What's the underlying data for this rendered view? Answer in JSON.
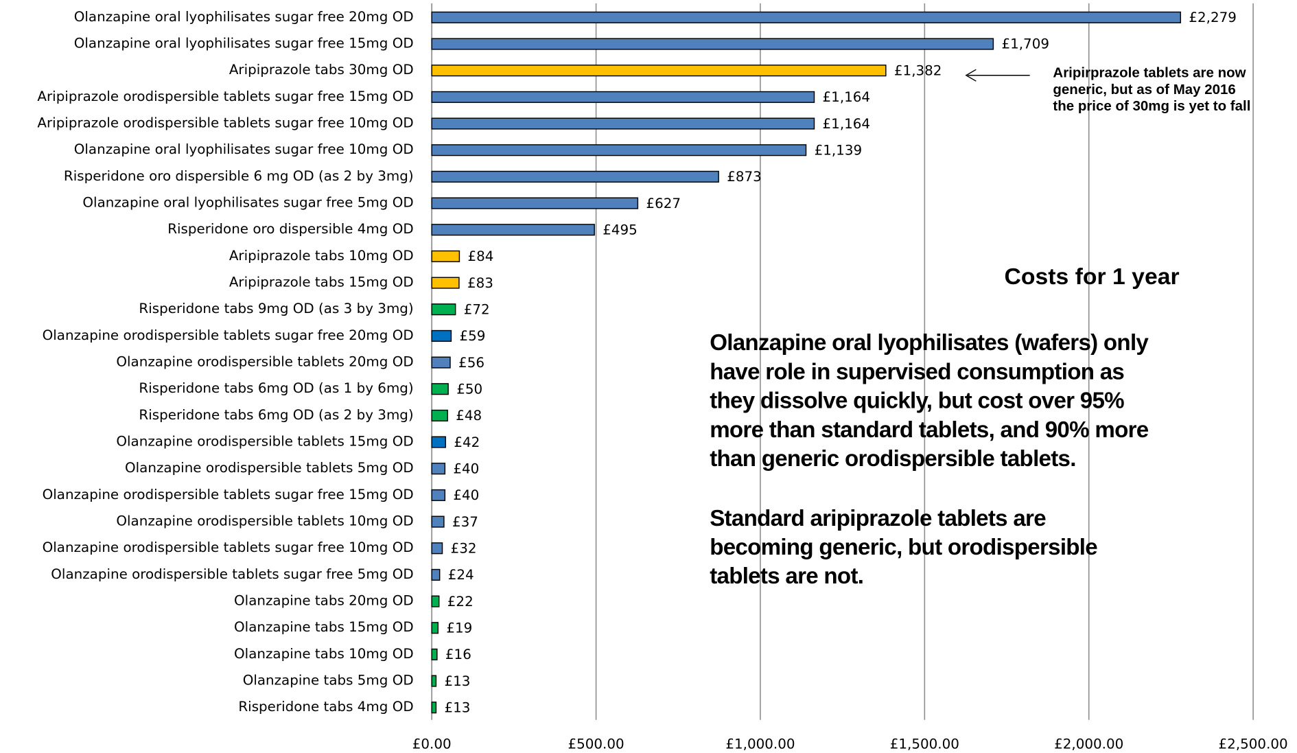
{
  "chart_data": {
    "type": "bar",
    "orientation": "horizontal",
    "categories": [
      "Olanzapine oral lyophilisates sugar free 20mg OD",
      "Olanzapine oral lyophilisates sugar free 15mg OD",
      "Aripiprazole tabs 30mg OD",
      "Aripiprazole orodispersible tablets sugar free 15mg OD",
      "Aripiprazole orodispersible tablets sugar free 10mg OD",
      "Olanzapine oral lyophilisates sugar free 10mg OD",
      "Risperidone oro dispersible 6 mg OD (as 2 by 3mg)",
      "Olanzapine oral lyophilisates sugar free 5mg OD",
      "Risperidone oro dispersible 4mg OD",
      "Aripiprazole tabs 10mg OD",
      "Aripiprazole tabs 15mg OD",
      "Risperidone tabs 9mg OD (as 3 by 3mg)",
      "Olanzapine orodispersible tablets sugar free 20mg OD",
      "Olanzapine  orodispersible tablets 20mg OD",
      "Risperidone tabs 6mg OD (as 1 by 6mg)",
      "Risperidone tabs 6mg OD (as 2 by 3mg)",
      "Olanzapine  orodispersible tablets 15mg OD",
      "Olanzapine orodispersible tablets 5mg OD",
      "Olanzapine  orodispersible tablets sugar free 15mg OD",
      "Olanzapine orodispersible tablets 10mg OD",
      "Olanzapine orodispersible tablets sugar free 10mg OD",
      "Olanzapine orodispersible tablets sugar free 5mg OD",
      "Olanzapine tabs 20mg OD",
      "Olanzapine tabs 15mg OD",
      "Olanzapine tabs 10mg OD",
      "Olanzapine tabs 5mg OD",
      "Risperidone tabs 4mg OD"
    ],
    "values": [
      2279,
      1709,
      1382,
      1164,
      1164,
      1139,
      873,
      627,
      495,
      84,
      83,
      72,
      59,
      56,
      50,
      48,
      42,
      40,
      40,
      37,
      32,
      24,
      22,
      19,
      16,
      13,
      13
    ],
    "value_labels": [
      "£2,279",
      "£1,709",
      "£1,382",
      "£1,164",
      "£1,164",
      "£1,139",
      "£873",
      "£627",
      "£495",
      "£84",
      "£83",
      "£72",
      "£59",
      "£56",
      "£50",
      "£48",
      "£42",
      "£40",
      "£40",
      "£37",
      "£32",
      "£24",
      "£22",
      "£19",
      "£16",
      "£13",
      "£13"
    ],
    "colors": [
      "#4f81bd",
      "#4f81bd",
      "#ffc000",
      "#4f81bd",
      "#4f81bd",
      "#4f81bd",
      "#4f81bd",
      "#4f81bd",
      "#4f81bd",
      "#ffc000",
      "#ffc000",
      "#00b050",
      "#0070c0",
      "#4f81bd",
      "#00b050",
      "#00b050",
      "#0070c0",
      "#4f81bd",
      "#4f81bd",
      "#4f81bd",
      "#4f81bd",
      "#4f81bd",
      "#00b050",
      "#00b050",
      "#00b050",
      "#00b050",
      "#00b050"
    ],
    "xlim": [
      0,
      2500
    ],
    "xticks": [
      {
        "value": 0,
        "label": "£0.00"
      },
      {
        "value": 500,
        "label": "£500.00"
      },
      {
        "value": 1000,
        "label": "£1,000.00"
      },
      {
        "value": 1500,
        "label": "£1,500.00"
      },
      {
        "value": 2000,
        "label": "£2,000.00"
      },
      {
        "value": 2500,
        "label": "£2,500.00"
      }
    ],
    "grid": true,
    "arrow_note": [
      "Aripirprazole tablets are now",
      "generic, but as of May 2016",
      "the price of 30mg is yet to fall"
    ],
    "heading": "Costs for 1 year",
    "notes": [
      [
        "Olanzapine oral lyophilisates (wafers) only",
        "have role in supervised consumption as",
        "they dissolve quickly, but cost over 95%",
        "more than standard tablets, and 90% more",
        "than generic orodispersible tablets."
      ],
      [
        "Standard aripiprazole tablets are",
        "becoming generic, but orodispersible",
        "tablets are not."
      ]
    ]
  }
}
